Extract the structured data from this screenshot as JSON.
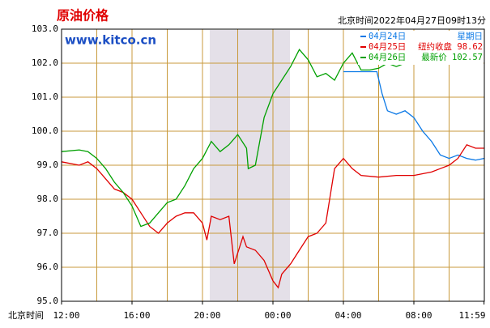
{
  "chart_data": {
    "type": "line",
    "title": "原油价格",
    "watermark": "www.kitco.cn",
    "timestamp": "北京时间2022年04月27日09时13分",
    "x_label": "北京时间",
    "xlim": [
      0,
      23.983
    ],
    "xticks": [
      {
        "value": 0,
        "label": "12:00"
      },
      {
        "value": 4,
        "label": "16:00"
      },
      {
        "value": 8,
        "label": "20:00"
      },
      {
        "value": 12,
        "label": "00:00"
      },
      {
        "value": 16,
        "label": "04:00"
      },
      {
        "value": 20,
        "label": "08:00"
      },
      {
        "value": 23.983,
        "label": "11:59"
      }
    ],
    "ylim": [
      95,
      103
    ],
    "yticks": [
      {
        "value": 95,
        "label": "95.0"
      },
      {
        "value": 96,
        "label": "96.0"
      },
      {
        "value": 97,
        "label": "97.0"
      },
      {
        "value": 98,
        "label": "98.0"
      },
      {
        "value": 99,
        "label": "99.0"
      },
      {
        "value": 100,
        "label": "100.0"
      },
      {
        "value": 101,
        "label": "101.0"
      },
      {
        "value": 102,
        "label": "102.0"
      },
      {
        "value": 103,
        "label": "103.0"
      }
    ],
    "grid": true,
    "legend": "top-right",
    "series": [
      {
        "name": "04月24日",
        "note": "星期日",
        "color": "#0a78e6",
        "x": [
          16,
          17.5,
          17.9,
          18.2,
          18.5,
          19,
          19.5,
          20,
          20.5,
          21,
          21.5,
          22,
          22.5,
          23,
          23.5,
          23.983
        ],
        "values": [
          101.75,
          101.75,
          101.75,
          101.1,
          100.6,
          100.5,
          100.6,
          100.4,
          100.0,
          99.7,
          99.3,
          99.2,
          99.3,
          99.2,
          99.15,
          99.2
        ]
      },
      {
        "name": "04月25日",
        "note": "纽约收盘 98.62",
        "color": "#e00000",
        "x": [
          0,
          1,
          1.5,
          2,
          2.5,
          3,
          3.5,
          4,
          4.5,
          5,
          5.5,
          6,
          6.5,
          7,
          7.5,
          8,
          8.25,
          8.5,
          9,
          9.5,
          9.8,
          10.3,
          10.5,
          11,
          11.5,
          12,
          12.3,
          12.5,
          13,
          13.5,
          14,
          14.5,
          15,
          15.5,
          16,
          16.5,
          17,
          18,
          19,
          20,
          21,
          21.5,
          22,
          22.5,
          23,
          23.5,
          23.983
        ],
        "values": [
          99.1,
          99.0,
          99.1,
          98.9,
          98.6,
          98.3,
          98.2,
          98.0,
          97.6,
          97.2,
          97.0,
          97.3,
          97.5,
          97.6,
          97.6,
          97.3,
          96.8,
          97.5,
          97.4,
          97.5,
          96.1,
          96.9,
          96.6,
          96.5,
          96.2,
          95.6,
          95.4,
          95.8,
          96.1,
          96.5,
          96.9,
          97.0,
          97.3,
          98.9,
          99.2,
          98.9,
          98.7,
          98.65,
          98.7,
          98.7,
          98.8,
          98.9,
          99.0,
          99.2,
          99.6,
          99.5,
          99.5
        ]
      },
      {
        "name": "04月26日",
        "note": "最新价 102.57",
        "color": "#00a000",
        "x": [
          0,
          1,
          1.5,
          2,
          2.5,
          3,
          3.5,
          4,
          4.5,
          5,
          5.5,
          6,
          6.5,
          7,
          7.5,
          8,
          8.5,
          9,
          9.5,
          10,
          10.5,
          10.6,
          11,
          11.5,
          12,
          12.5,
          13,
          13.5,
          14,
          14.5,
          15,
          15.5,
          16,
          16.5,
          17,
          17.5,
          18,
          18.5,
          19,
          19.5,
          19.9
        ],
        "values": [
          99.4,
          99.45,
          99.4,
          99.2,
          98.9,
          98.5,
          98.2,
          97.8,
          97.2,
          97.3,
          97.6,
          97.9,
          98.0,
          98.4,
          98.9,
          99.2,
          99.7,
          99.4,
          99.6,
          99.9,
          99.5,
          98.9,
          99.0,
          100.4,
          101.1,
          101.5,
          101.9,
          102.4,
          102.1,
          101.6,
          101.7,
          101.5,
          102.0,
          102.3,
          101.8,
          101.8,
          101.85,
          102.0,
          101.9,
          102.0,
          102.0
        ]
      }
    ]
  }
}
